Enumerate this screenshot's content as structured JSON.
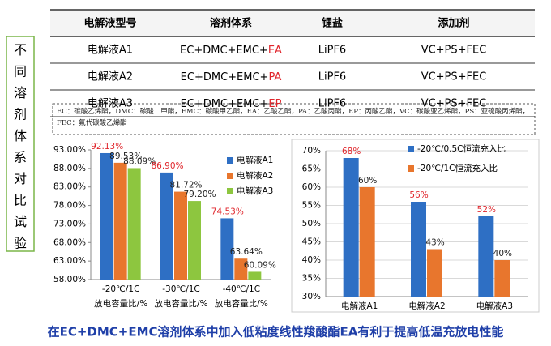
{
  "side_label": "不同溶剂体系对比试验",
  "table": {
    "header": [
      "电解液型号",
      "溶剂体系",
      "锂盐",
      "添加剂"
    ],
    "rows": [
      {
        "model": "电解液A1",
        "solvent": [
          "EC+DMC+EMC+",
          "EA"
        ],
        "salt": "LiPF6",
        "additive": "VC+PS+FEC"
      },
      {
        "model": "电解液A2",
        "solvent": [
          "EC+DMC+EMC+",
          "PA"
        ],
        "salt": "LiPF6",
        "additive": "VC+PS+FEC"
      },
      {
        "model": "电解液A3",
        "solvent": [
          "EC+DMC+EMC+",
          "EP"
        ],
        "salt": "LiPF6",
        "additive": "VC+PS+FEC"
      }
    ]
  },
  "note": "EC：碳酸乙烯酯，DMC：碳酸二甲酯，EMC：碳酸甲乙酯，EA：乙酸乙酯，PA：乙酸丙酯，EP：丙酸乙酯，VC：碳酸亚乙烯酯，PS：亚硫酸丙烯酯，FEC：氟代碳酸乙烯酯",
  "chart_data": [
    {
      "type": "bar",
      "categories": [
        "-20℃/1C",
        "-30℃/1C",
        "-40℃/1C"
      ],
      "category_sublabel": "放电容量比/%",
      "series": [
        {
          "name": "电解液A1",
          "color": "#2e6fc4",
          "label_color": "#e0262c",
          "values": [
            92.13,
            86.9,
            74.53
          ],
          "value_labels": [
            "92.13%",
            "86.90%",
            "74.53%"
          ]
        },
        {
          "name": "电解液A2",
          "color": "#e8762d",
          "label_color": "#222",
          "values": [
            89.53,
            81.72,
            63.64
          ],
          "value_labels": [
            "89.53%",
            "81.72%",
            "63.64%"
          ]
        },
        {
          "name": "电解液A3",
          "color": "#8dc63f",
          "label_color": "#222",
          "values": [
            88.09,
            79.2,
            60.09
          ],
          "value_labels": [
            "88.09%",
            "79.20%",
            "60.09%"
          ]
        }
      ],
      "ylim": [
        58,
        93
      ],
      "yticks": [
        {
          "value": 58,
          "label": "58.00%"
        },
        {
          "value": 63,
          "label": "63.00%"
        },
        {
          "value": 68,
          "label": "68.00%"
        },
        {
          "value": 73,
          "label": "73.00%"
        },
        {
          "value": 78,
          "label": "78.00%"
        },
        {
          "value": 83,
          "label": "83.00%"
        },
        {
          "value": 88,
          "label": "88.00%"
        },
        {
          "value": 93,
          "label": "93.00%"
        }
      ],
      "grid": false
    },
    {
      "type": "bar",
      "categories": [
        "电解液A1",
        "电解液A2",
        "电解液A3"
      ],
      "series": [
        {
          "name": "-20℃/0.5C恒流充入比",
          "color": "#2e6fc4",
          "label_color": "#e0262c",
          "values": [
            68,
            56,
            52
          ],
          "value_labels": [
            "68%",
            "56%",
            "52%"
          ]
        },
        {
          "name": "-20℃/1C恒流充入比",
          "color": "#e8762d",
          "label_color": "#222",
          "values": [
            60,
            43,
            40
          ],
          "value_labels": [
            "60%",
            "43%",
            "40%"
          ]
        }
      ],
      "ylim": [
        30,
        70
      ],
      "yticks": [
        {
          "value": 30,
          "label": "30%"
        },
        {
          "value": 35,
          "label": "35%"
        },
        {
          "value": 40,
          "label": "40%"
        },
        {
          "value": 45,
          "label": "45%"
        },
        {
          "value": 50,
          "label": "50%"
        },
        {
          "value": 55,
          "label": "55%"
        },
        {
          "value": 60,
          "label": "60%"
        },
        {
          "value": 65,
          "label": "65%"
        },
        {
          "value": 70,
          "label": "70%"
        }
      ],
      "grid": true
    }
  ],
  "caption": "在EC+DMC+EMC溶剂体系中加入低粘度线性羧酸酯EA有利于提高低温充放电性能"
}
